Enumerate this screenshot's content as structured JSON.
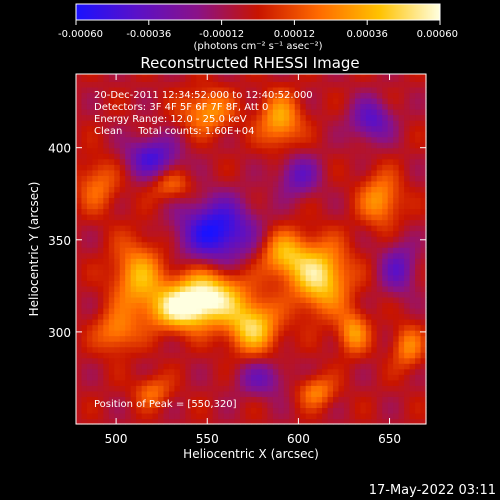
{
  "colorbar": {
    "ticks": [
      "-0.00060",
      "-0.00036",
      "-0.00012",
      "0.00012",
      "0.00036",
      "0.00060"
    ],
    "unit_label": "(photons cm⁻² s⁻¹ asec⁻²)",
    "colors": [
      "#1a12ff",
      "#5a10c8",
      "#8a1288",
      "#c81400",
      "#ff6a00",
      "#ffc200",
      "#ffffe0"
    ]
  },
  "header": {
    "line1": "20-Dec-2011 12:34:52.000 to 12:40:52.000",
    "line2": "Detectors: 3F 4F 5F 6F 7F 8F, Att 0",
    "line3": "Energy Range: 12.0 - 25.0 keV",
    "line4": "Clean     Total counts: 1.60E+04"
  },
  "peak_label": "Position of Peak = [550,320]",
  "timestamp": "17-May-2022 03:11",
  "chart_data": {
    "type": "heatmap",
    "title": "Reconstructed RHESSI Image",
    "xlabel": "Heliocentric X (arcsec)",
    "ylabel": "Heliocentric Y (arcsec)",
    "xlim": [
      478,
      670
    ],
    "ylim": [
      250,
      440
    ],
    "x_ticks": [
      500,
      550,
      600,
      650
    ],
    "y_ticks": [
      300,
      350,
      400
    ],
    "color_scale": {
      "min": -0.0006,
      "max": 0.0006
    },
    "peak": {
      "x": 550,
      "y": 320
    },
    "grid": false,
    "sources": [
      {
        "x": 550,
        "y": 320,
        "amp": 0.0006,
        "sx": 14,
        "sy": 10
      },
      {
        "x": 535,
        "y": 312,
        "amp": 0.00045,
        "sx": 12,
        "sy": 8
      },
      {
        "x": 575,
        "y": 303,
        "amp": 0.0005,
        "sx": 10,
        "sy": 10
      },
      {
        "x": 612,
        "y": 330,
        "amp": 0.00055,
        "sx": 11,
        "sy": 13
      },
      {
        "x": 592,
        "y": 342,
        "amp": 0.0004,
        "sx": 9,
        "sy": 9
      },
      {
        "x": 512,
        "y": 330,
        "amp": 0.0004,
        "sx": 10,
        "sy": 14
      },
      {
        "x": 500,
        "y": 300,
        "amp": 0.0003,
        "sx": 8,
        "sy": 8
      },
      {
        "x": 550,
        "y": 420,
        "amp": 0.00035,
        "sx": 10,
        "sy": 8
      },
      {
        "x": 590,
        "y": 415,
        "amp": 0.0004,
        "sx": 8,
        "sy": 10
      },
      {
        "x": 645,
        "y": 372,
        "amp": 0.00035,
        "sx": 8,
        "sy": 10
      },
      {
        "x": 630,
        "y": 300,
        "amp": 0.00035,
        "sx": 6,
        "sy": 8
      },
      {
        "x": 660,
        "y": 292,
        "amp": 0.0003,
        "sx": 6,
        "sy": 8
      },
      {
        "x": 490,
        "y": 380,
        "amp": 0.00025,
        "sx": 8,
        "sy": 10
      },
      {
        "x": 530,
        "y": 380,
        "amp": 0.00025,
        "sx": 8,
        "sy": 6
      },
      {
        "x": 610,
        "y": 268,
        "amp": 0.0003,
        "sx": 7,
        "sy": 6
      },
      {
        "x": 520,
        "y": 268,
        "amp": 0.00025,
        "sx": 7,
        "sy": 6
      },
      {
        "x": 555,
        "y": 355,
        "amp": -0.00055,
        "sx": 14,
        "sy": 12
      },
      {
        "x": 520,
        "y": 395,
        "amp": -0.0004,
        "sx": 10,
        "sy": 8
      },
      {
        "x": 640,
        "y": 415,
        "amp": -0.00035,
        "sx": 8,
        "sy": 8
      },
      {
        "x": 600,
        "y": 385,
        "amp": -0.0003,
        "sx": 8,
        "sy": 8
      },
      {
        "x": 655,
        "y": 335,
        "amp": -0.0003,
        "sx": 7,
        "sy": 10
      },
      {
        "x": 580,
        "y": 275,
        "amp": -0.00025,
        "sx": 10,
        "sy": 7
      }
    ]
  }
}
